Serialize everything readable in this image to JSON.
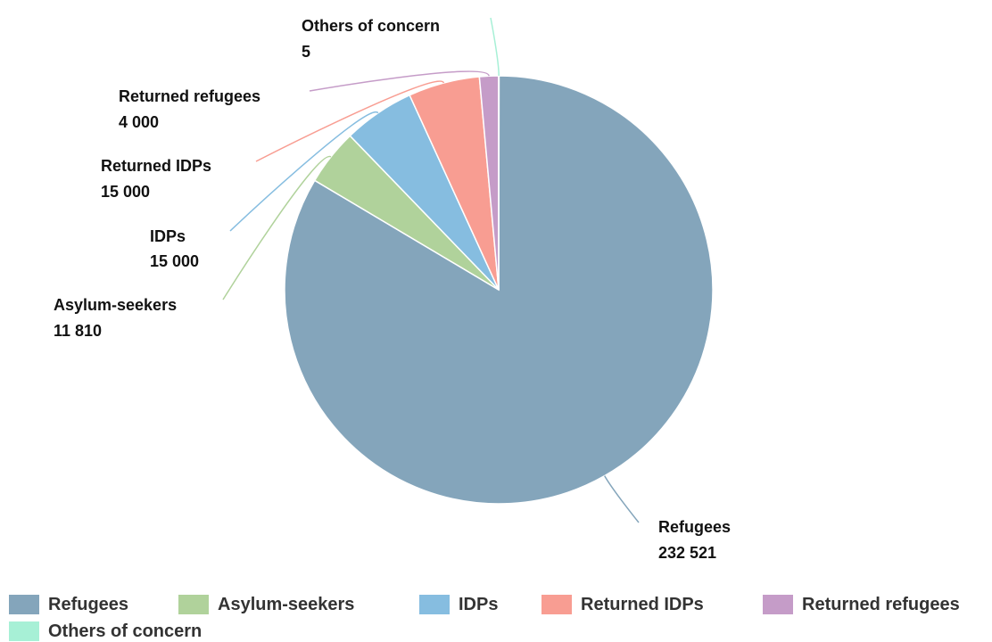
{
  "chart_data": {
    "type": "pie",
    "categories": [
      "Refugees",
      "Asylum-seekers",
      "IDPs",
      "Returned IDPs",
      "Returned refugees",
      "Others of concern"
    ],
    "values": [
      232521,
      11810,
      15000,
      15000,
      4000,
      5
    ],
    "value_labels": [
      "232 521",
      "11 810",
      "15 000",
      "15 000",
      "4 000",
      "5"
    ],
    "colors": [
      "#84a5bb",
      "#b0d29b",
      "#86bde0",
      "#f89d92",
      "#c59cc8",
      "#a7f0d6"
    ],
    "legend_position": "bottom"
  }
}
